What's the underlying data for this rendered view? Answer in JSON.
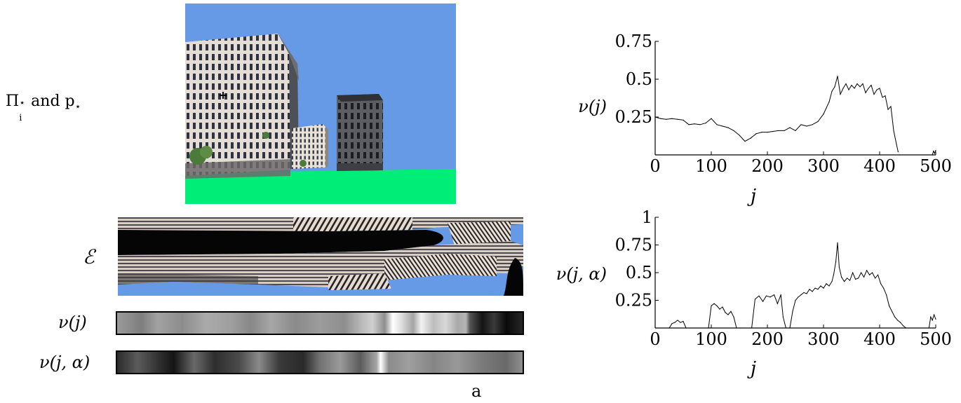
{
  "labels": {
    "row1": "Π",
    "row1_sup": "⋆",
    "row1_sub": "i",
    "row1_mid": " and p",
    "row1_sub2": "⋆",
    "row2": "ℰ",
    "row3": "ν(j)",
    "row4": "ν(j, α)",
    "caption": "a"
  },
  "chart_data": [
    {
      "type": "line",
      "title": "",
      "xlabel": "j",
      "ylabel": "ν(j)",
      "xlim": [
        0,
        500
      ],
      "ylim": [
        0,
        0.75
      ],
      "xticks": [
        0,
        100,
        200,
        300,
        400,
        500
      ],
      "yticks": [
        0.25,
        0.5,
        0.75
      ],
      "xtick_labels": [
        "0",
        "100",
        "200",
        "300",
        "400",
        "500"
      ],
      "ytick_labels": [
        "0.25",
        "0.5",
        "0.75"
      ],
      "series": [
        {
          "x": [
            0,
            10,
            20,
            30,
            40,
            50,
            60,
            70,
            80,
            90,
            100,
            110,
            120,
            130,
            140,
            150,
            160,
            170,
            180,
            190,
            200,
            210,
            220,
            230,
            240,
            250,
            260,
            270,
            280,
            290,
            300,
            305,
            310,
            315,
            320,
            325,
            330,
            335,
            340,
            345,
            350,
            355,
            360,
            365,
            370,
            375,
            380,
            385,
            390,
            395,
            400,
            405,
            410,
            415,
            420,
            425,
            430,
            433
          ],
          "y": [
            0.25,
            0.24,
            0.235,
            0.24,
            0.235,
            0.23,
            0.2,
            0.205,
            0.2,
            0.21,
            0.24,
            0.2,
            0.19,
            0.18,
            0.16,
            0.13,
            0.09,
            0.11,
            0.14,
            0.15,
            0.15,
            0.155,
            0.16,
            0.16,
            0.18,
            0.16,
            0.2,
            0.19,
            0.2,
            0.22,
            0.27,
            0.31,
            0.35,
            0.42,
            0.45,
            0.52,
            0.4,
            0.44,
            0.47,
            0.43,
            0.46,
            0.44,
            0.47,
            0.45,
            0.47,
            0.41,
            0.44,
            0.46,
            0.4,
            0.43,
            0.44,
            0.38,
            0.39,
            0.3,
            0.32,
            0.16,
            0.07,
            0.02
          ]
        },
        {
          "x": [
            494,
            496,
            498,
            500
          ],
          "y": [
            0.0,
            0.025,
            0.01,
            0.03
          ]
        }
      ]
    },
    {
      "type": "line",
      "title": "",
      "xlabel": "j",
      "ylabel": "ν(j, α)",
      "xlim": [
        0,
        500
      ],
      "ylim": [
        0,
        1
      ],
      "xticks": [
        0,
        100,
        200,
        300,
        400,
        500
      ],
      "yticks": [
        0.25,
        0.5,
        0.75,
        1
      ],
      "xtick_labels": [
        "0",
        "100",
        "200",
        "300",
        "400",
        "500"
      ],
      "ytick_labels": [
        "0.25",
        "0.5",
        "0.75",
        "1"
      ],
      "series": [
        {
          "x": [
            25,
            30,
            35,
            40,
            45,
            50,
            55
          ],
          "y": [
            0.0,
            0.04,
            0.05,
            0.07,
            0.05,
            0.06,
            0.0
          ]
        },
        {
          "x": [
            95,
            100,
            105,
            110,
            115,
            120,
            125,
            130,
            135,
            140,
            145
          ],
          "y": [
            0.0,
            0.2,
            0.22,
            0.2,
            0.17,
            0.19,
            0.14,
            0.12,
            0.15,
            0.1,
            0.0
          ]
        },
        {
          "x": [
            172,
            178,
            185,
            192,
            198,
            205,
            212,
            218,
            224,
            228,
            233
          ],
          "y": [
            0.0,
            0.26,
            0.29,
            0.24,
            0.29,
            0.28,
            0.3,
            0.22,
            0.3,
            0.1,
            0.0
          ]
        },
        {
          "x": [
            240,
            245,
            250,
            255,
            260,
            265,
            270,
            275,
            280,
            285,
            290,
            295,
            300,
            305,
            310,
            315,
            318,
            322,
            325,
            328,
            332,
            337,
            342,
            347,
            352,
            357,
            362,
            367,
            372,
            377,
            382,
            387,
            392,
            397,
            402,
            407,
            412,
            417,
            422,
            427,
            432,
            437,
            442,
            447
          ],
          "y": [
            0.0,
            0.15,
            0.25,
            0.28,
            0.3,
            0.32,
            0.31,
            0.35,
            0.33,
            0.36,
            0.35,
            0.38,
            0.36,
            0.4,
            0.38,
            0.42,
            0.48,
            0.6,
            0.77,
            0.55,
            0.46,
            0.42,
            0.45,
            0.43,
            0.5,
            0.44,
            0.45,
            0.5,
            0.46,
            0.52,
            0.48,
            0.5,
            0.45,
            0.48,
            0.4,
            0.36,
            0.3,
            0.2,
            0.15,
            0.1,
            0.07,
            0.05,
            0.02,
            0.0
          ]
        },
        {
          "x": [
            488,
            491,
            494,
            497,
            500
          ],
          "y": [
            0.0,
            0.1,
            0.07,
            0.12,
            0.08
          ]
        }
      ]
    }
  ]
}
